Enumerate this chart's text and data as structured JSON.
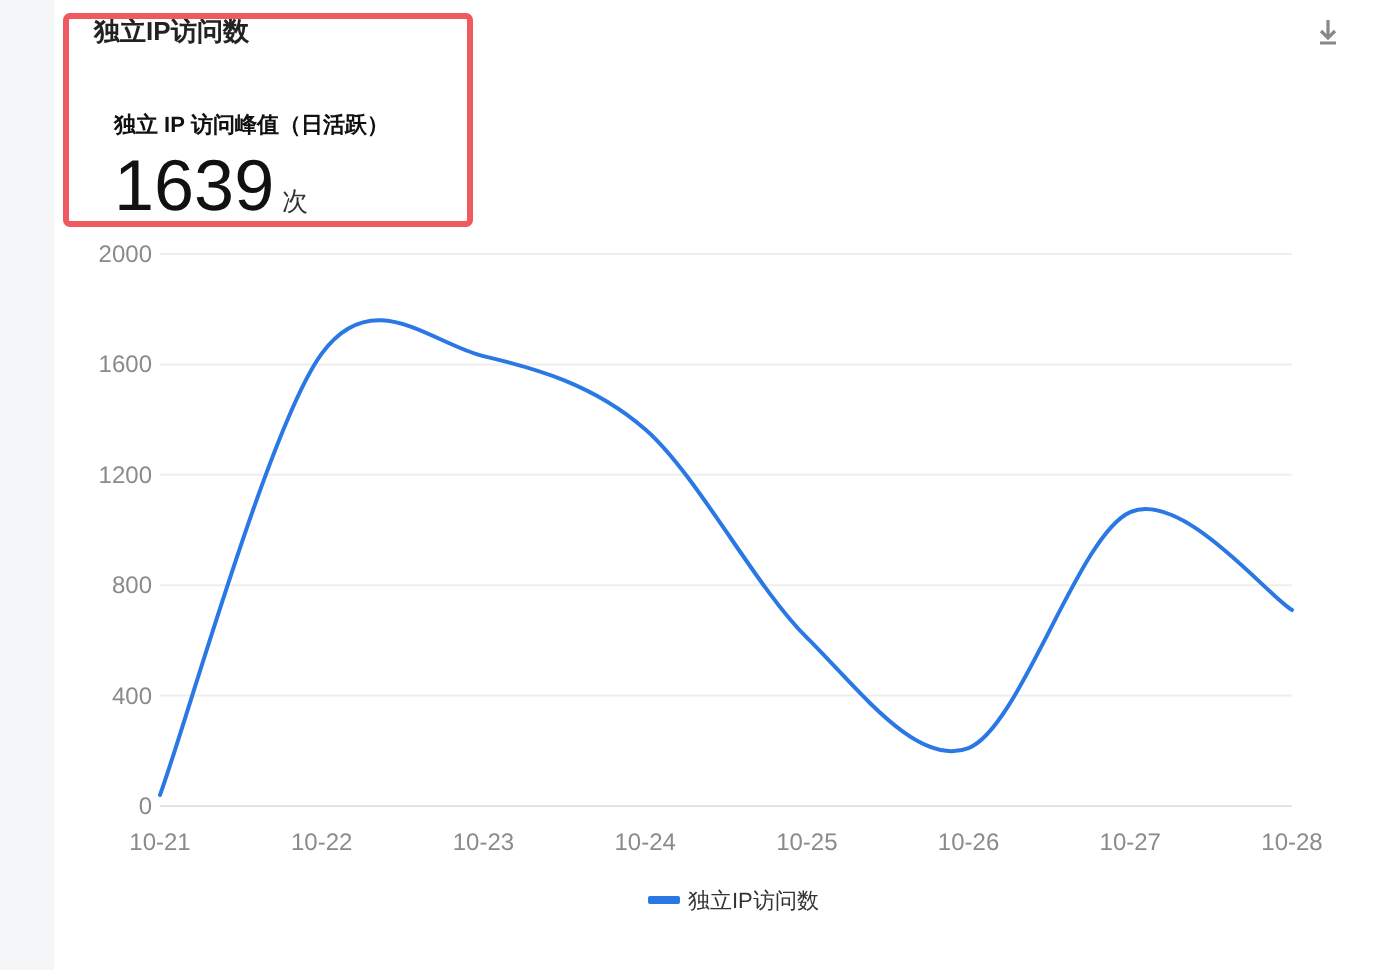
{
  "chart_data": {
    "type": "line",
    "title": "独立IP访问数",
    "annotations": [
      "独立 IP 访问峰值（日活跃）",
      "1639",
      "次"
    ],
    "categories": [
      "10-21",
      "10-22",
      "10-23",
      "10-24",
      "10-25",
      "10-26",
      "10-27",
      "10-28"
    ],
    "series": [
      {
        "name": "独立IP访问数",
        "color": "#2a78e4",
        "values": [
          40,
          1639,
          1630,
          1365,
          610,
          210,
          1065,
          710
        ]
      }
    ],
    "ylim": [
      0,
      2000
    ],
    "yticks": [
      0,
      400,
      800,
      1200,
      1600,
      2000
    ],
    "grid": "y",
    "legend": "bottom",
    "marker": "none",
    "line_style": "solid"
  }
}
